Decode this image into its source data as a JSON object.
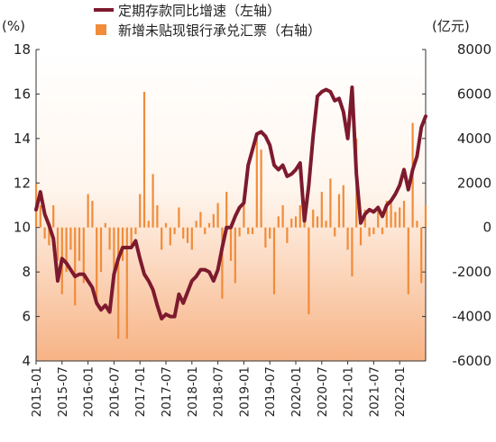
{
  "chart_data": {
    "type": "bar+line",
    "left_unit": "(%)",
    "right_unit": "(亿元)",
    "left_axis": {
      "min": 4,
      "max": 18,
      "ticks": [
        4,
        6,
        8,
        10,
        12,
        14,
        16,
        18
      ]
    },
    "right_axis": {
      "min": -6000,
      "max": 8000,
      "ticks": [
        -6000,
        -4000,
        -2000,
        0,
        2000,
        4000,
        6000,
        8000
      ]
    },
    "x_tick_labels": [
      "2015-01",
      "2015-07",
      "2016-01",
      "2016-07",
      "2017-01",
      "2017-07",
      "2018-01",
      "2018-07",
      "2019-01",
      "2019-07",
      "2020-01",
      "2020-07",
      "2021-01",
      "2021-07",
      "2022-01"
    ],
    "start_month": "2015-01",
    "series": [
      {
        "name": "定期存款同比增速（左轴）",
        "type": "line",
        "axis": "left",
        "color": "#7d1a2e",
        "values": [
          10.8,
          11.6,
          10.6,
          10.1,
          9.5,
          7.6,
          8.6,
          8.4,
          8.1,
          7.8,
          7.9,
          7.9,
          7.6,
          7.3,
          6.6,
          6.3,
          6.5,
          6.2,
          7.9,
          8.6,
          9.1,
          9.1,
          9.1,
          9.4,
          8.6,
          7.9,
          7.6,
          7.2,
          6.5,
          5.9,
          6.1,
          6.0,
          6.0,
          7.0,
          6.6,
          7.1,
          7.6,
          7.8,
          8.1,
          8.1,
          8.0,
          7.6,
          8.1,
          9.1,
          10.0,
          10.0,
          10.5,
          10.9,
          11.1,
          12.8,
          13.5,
          14.2,
          14.3,
          14.1,
          13.7,
          12.8,
          12.6,
          12.8,
          12.3,
          12.4,
          12.6,
          12.9,
          10.3,
          11.9,
          14.1,
          15.9,
          16.1,
          16.2,
          16.1,
          15.7,
          15.8,
          15.2,
          14.0,
          16.3,
          12.4,
          10.2,
          10.6,
          10.8,
          10.7,
          10.9,
          10.5,
          11.0,
          11.2,
          11.5,
          11.9,
          12.6,
          11.7,
          12.6,
          13.2,
          14.5,
          15.0
        ]
      },
      {
        "name": "新增未贴现银行承兑汇票（右轴）",
        "type": "bar",
        "axis": "right",
        "color": "#f08c3a",
        "values": [
          2000,
          1000,
          -500,
          -800,
          1000,
          -1500,
          -3000,
          -2000,
          -1000,
          -3500,
          -1500,
          -2500,
          1500,
          1200,
          -3200,
          -2000,
          200,
          -1000,
          -2500,
          -5000,
          -1500,
          -5000,
          -800,
          -300,
          1500,
          6100,
          300,
          2400,
          1000,
          -1000,
          200,
          -800,
          -300,
          900,
          -500,
          -700,
          -1000,
          300,
          700,
          -300,
          200,
          600,
          1100,
          -3200,
          1600,
          -1500,
          -2500,
          -400,
          1000,
          -300,
          -300,
          4000,
          3500,
          -900,
          -500,
          -3000,
          500,
          1000,
          -700,
          400,
          500,
          1000,
          300,
          -3900,
          800,
          500,
          1600,
          300,
          2200,
          -400,
          1500,
          1900,
          -1000,
          -2200,
          4000,
          -800,
          800,
          -400,
          -300,
          800,
          -300,
          1200,
          1200,
          700,
          900,
          1200,
          -3000,
          4700,
          300,
          -2500,
          1000
        ]
      }
    ],
    "grid": false,
    "legend_position": "top-left"
  }
}
